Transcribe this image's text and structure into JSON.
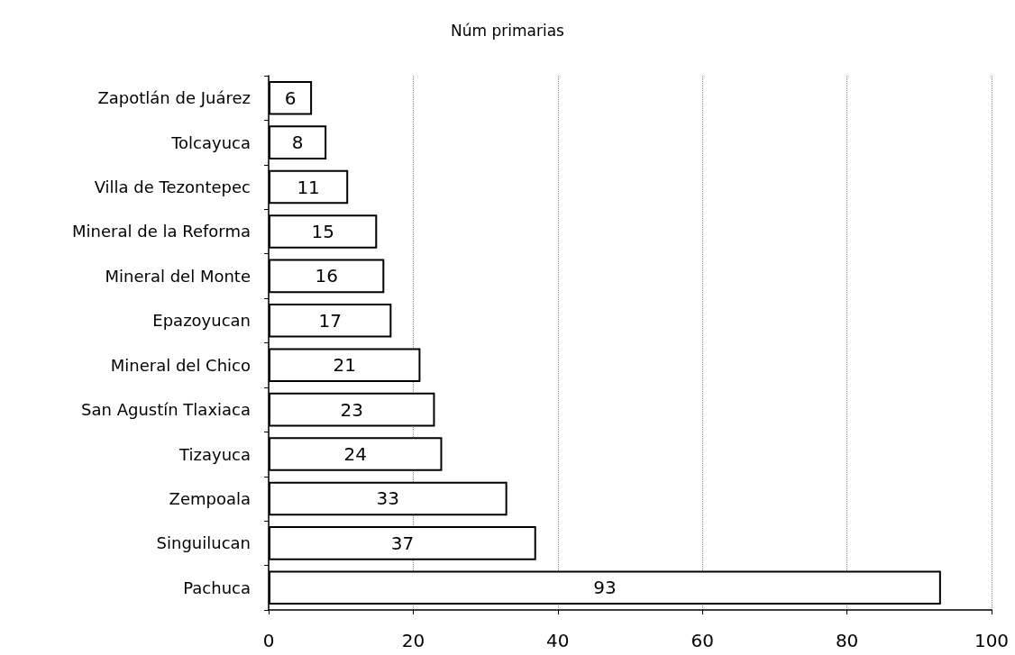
{
  "chart_data": {
    "type": "bar",
    "orientation": "horizontal",
    "title": "Núm primarias",
    "categories": [
      "Zapotlán de Juárez",
      "Tolcayuca",
      "Villa de Tezontepec",
      "Mineral de la Reforma",
      "Mineral del Monte",
      "Epazoyucan",
      "Mineral del Chico",
      "San Agustín Tlaxiaca",
      "Tizayuca",
      "Zempoala",
      "Singuilucan",
      "Pachuca"
    ],
    "values": [
      6,
      8,
      11,
      15,
      16,
      17,
      21,
      23,
      24,
      33,
      37,
      93
    ],
    "color": "#ffffff",
    "xlim": [
      0,
      100
    ],
    "xticks": [
      0,
      20,
      40,
      60,
      80,
      100
    ],
    "grid": "x",
    "data_labels": true
  }
}
